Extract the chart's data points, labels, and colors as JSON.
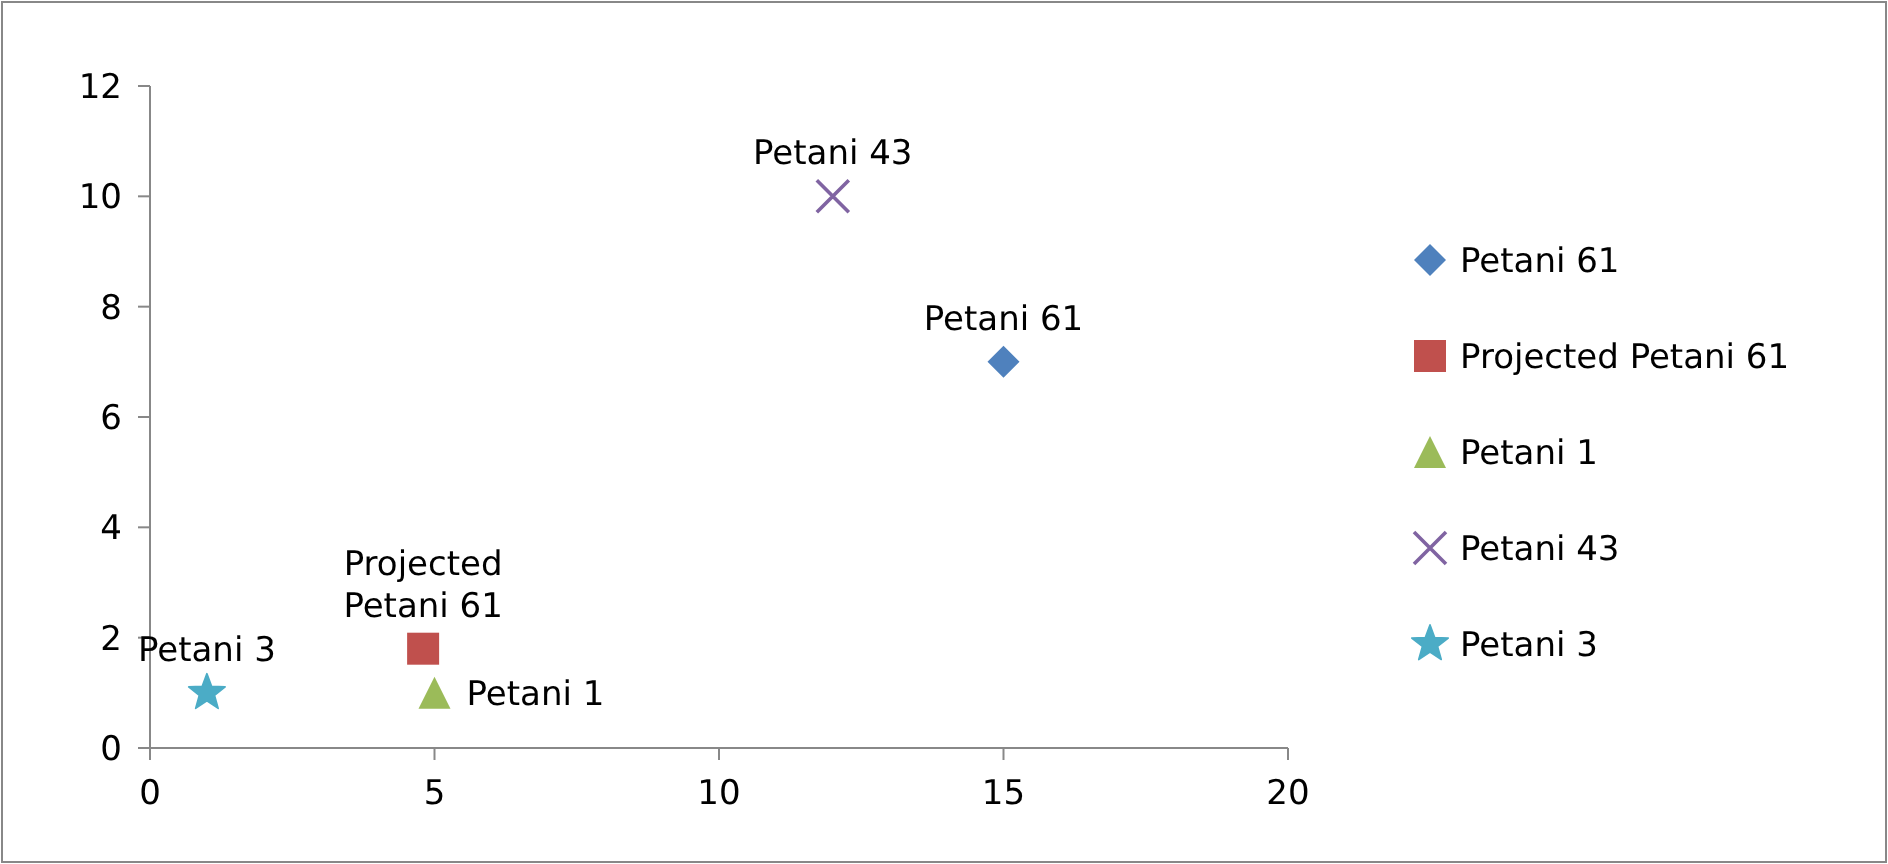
{
  "chart_data": {
    "type": "scatter",
    "series": [
      {
        "name": "Petani 61",
        "color": "#4f81bd",
        "marker": "diamond",
        "x": [
          15
        ],
        "values": [
          7
        ]
      },
      {
        "name": "Projected Petani 61",
        "color": "#c0504d",
        "marker": "square",
        "x": [
          4.8
        ],
        "values": [
          1.8
        ]
      },
      {
        "name": "Petani 1",
        "color": "#9bbb59",
        "marker": "triangle",
        "x": [
          5
        ],
        "values": [
          1
        ]
      },
      {
        "name": "Petani 43",
        "color": "#8064a2",
        "marker": "cross",
        "x": [
          12
        ],
        "values": [
          10
        ]
      },
      {
        "name": "Petani 3",
        "color": "#4bacc6",
        "marker": "star",
        "x": [
          1
        ],
        "values": [
          1
        ]
      }
    ],
    "xlim": [
      0,
      20
    ],
    "xticks": [
      0,
      5,
      10,
      15,
      20
    ],
    "ylim": [
      0,
      12
    ],
    "yticks": [
      0,
      2,
      4,
      6,
      8,
      10,
      12
    ],
    "grid": false,
    "legend": "right"
  }
}
